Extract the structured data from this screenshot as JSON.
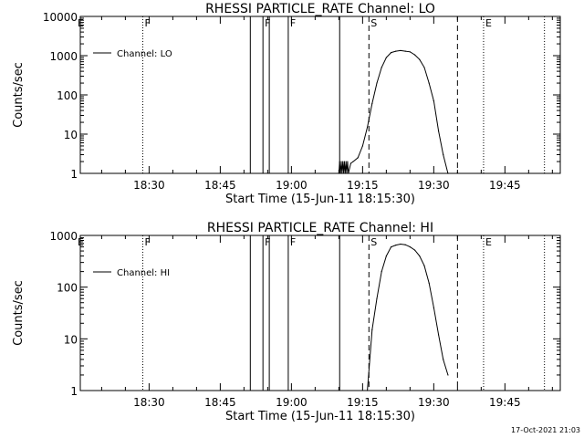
{
  "footer": {
    "timestamp": "17-Oct-2021 21:03"
  },
  "chart_data": [
    {
      "type": "line",
      "title": "RHESSI PARTICLE_RATE Channel: LO",
      "xlabel": "Start Time (15-Jun-11 18:15:30)",
      "ylabel": "Counts/sec",
      "y_scale": "log",
      "xlim": [
        "18:15:30",
        "19:56:40"
      ],
      "ylim": [
        1,
        10000
      ],
      "x_ticks": [
        "18:30",
        "18:45",
        "19:00",
        "19:15",
        "19:30",
        "19:45"
      ],
      "y_ticks": [
        "1",
        "10",
        "100",
        "1000",
        "10000"
      ],
      "legend": {
        "placement": "top-left",
        "entries": [
          "Channel: LO"
        ]
      },
      "series": [
        {
          "name": "Channel: LO",
          "x": [
            "19:10:00",
            "19:10:10",
            "19:10:20",
            "19:10:30",
            "19:10:40",
            "19:10:50",
            "19:11:00",
            "19:11:10",
            "19:11:20",
            "19:11:30",
            "19:11:40",
            "19:11:50",
            "19:12:00",
            "19:12:30",
            "19:13:00",
            "19:14:00",
            "19:15:00",
            "19:16:00",
            "19:17:00",
            "19:18:00",
            "19:19:00",
            "19:20:00",
            "19:21:00",
            "19:22:00",
            "19:23:00",
            "19:24:00",
            "19:25:00",
            "19:26:00",
            "19:27:00",
            "19:28:00",
            "19:29:00",
            "19:30:00",
            "19:31:00",
            "19:32:00",
            "19:33:00"
          ],
          "values": [
            1,
            2,
            1,
            2,
            1,
            2,
            1,
            2,
            1,
            2,
            1,
            2,
            1,
            1.8,
            2,
            2.5,
            5,
            15,
            60,
            200,
            500,
            900,
            1200,
            1300,
            1350,
            1300,
            1250,
            1050,
            800,
            500,
            200,
            70,
            12,
            3,
            1
          ]
        }
      ],
      "vertical_lines": [
        {
          "time": "18:28:40",
          "style": "dotted",
          "label": "F"
        },
        {
          "time": "18:51:20",
          "style": "solid",
          "label": ""
        },
        {
          "time": "18:54:00",
          "style": "solid",
          "label": "F"
        },
        {
          "time": "18:55:20",
          "style": "solid",
          "label": ""
        },
        {
          "time": "18:59:20",
          "style": "solid",
          "label": "F"
        },
        {
          "time": "19:10:10",
          "style": "solid",
          "label": ""
        },
        {
          "time": "19:16:20",
          "style": "dashed",
          "label": "S"
        },
        {
          "time": "19:35:00",
          "style": "dashed",
          "label": ""
        },
        {
          "time": "19:40:30",
          "style": "dotted",
          "label": "E"
        },
        {
          "time": "19:53:20",
          "style": "dotted",
          "label": ""
        }
      ],
      "edge_flags": [
        {
          "time": "18:15:30",
          "label": "E"
        }
      ]
    },
    {
      "type": "line",
      "title": "RHESSI PARTICLE_RATE Channel: HI",
      "xlabel": "Start Time (15-Jun-11 18:15:30)",
      "ylabel": "Counts/sec",
      "y_scale": "log",
      "xlim": [
        "18:15:30",
        "19:56:40"
      ],
      "ylim": [
        1,
        1000
      ],
      "x_ticks": [
        "18:30",
        "18:45",
        "19:00",
        "19:15",
        "19:30",
        "19:45"
      ],
      "y_ticks": [
        "1",
        "10",
        "100",
        "1000"
      ],
      "legend": {
        "placement": "top-left",
        "entries": [
          "Channel: HI"
        ]
      },
      "series": [
        {
          "name": "Channel: HI",
          "x": [
            "19:16:00",
            "19:17:00",
            "19:18:00",
            "19:19:00",
            "19:20:00",
            "19:21:00",
            "19:22:00",
            "19:23:00",
            "19:24:00",
            "19:25:00",
            "19:26:00",
            "19:27:00",
            "19:28:00",
            "19:29:00",
            "19:30:00",
            "19:31:00",
            "19:32:00",
            "19:33:00"
          ],
          "values": [
            1,
            15,
            60,
            200,
            400,
            600,
            650,
            680,
            660,
            600,
            520,
            400,
            260,
            120,
            40,
            12,
            4,
            2
          ]
        }
      ],
      "vertical_lines": [
        {
          "time": "18:28:40",
          "style": "dotted",
          "label": "F"
        },
        {
          "time": "18:51:20",
          "style": "solid",
          "label": ""
        },
        {
          "time": "18:54:00",
          "style": "solid",
          "label": "F"
        },
        {
          "time": "18:55:20",
          "style": "solid",
          "label": ""
        },
        {
          "time": "18:59:20",
          "style": "solid",
          "label": "F"
        },
        {
          "time": "19:10:10",
          "style": "solid",
          "label": ""
        },
        {
          "time": "19:16:20",
          "style": "dashed",
          "label": "S"
        },
        {
          "time": "19:35:00",
          "style": "dashed",
          "label": ""
        },
        {
          "time": "19:40:30",
          "style": "dotted",
          "label": "E"
        },
        {
          "time": "19:53:20",
          "style": "dotted",
          "label": ""
        }
      ],
      "edge_flags": [
        {
          "time": "18:15:30",
          "label": "E"
        }
      ]
    }
  ]
}
